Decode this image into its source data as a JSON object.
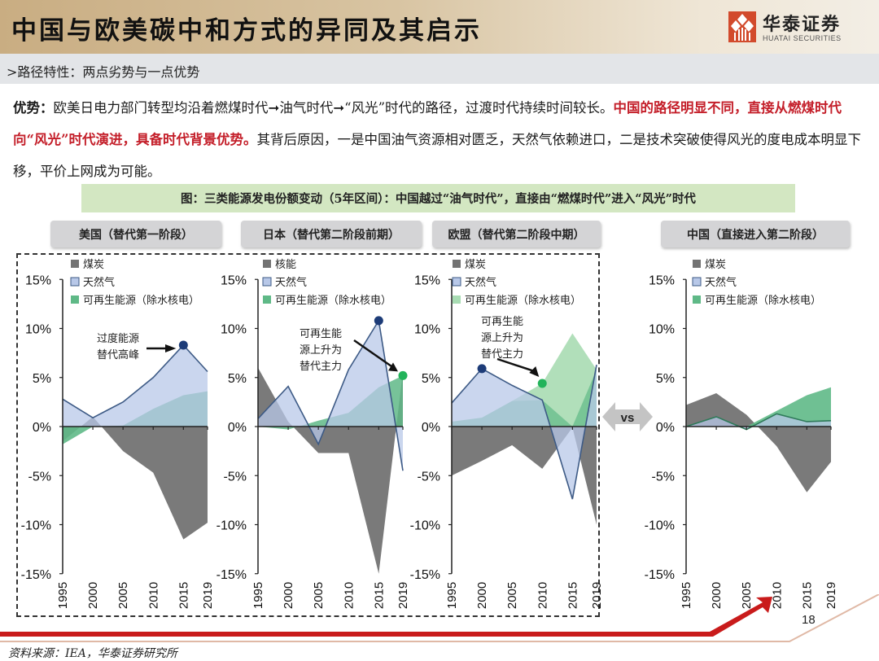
{
  "header": {
    "title": "中国与欧美碳中和方式的异同及其启示",
    "logo_cn": "华泰证券",
    "logo_en": "HUATAI SECURITIES"
  },
  "subheader": {
    "text": ">路径特性：两点劣势与一点优势"
  },
  "paragraph": {
    "lead": "优势：",
    "part1": "欧美日电力部门转型均沿着燃煤时代➞油气时代➞“风光”时代的路径，过渡时代持续时间较长。",
    "highlight": "中国的路径明显不同，直接从燃煤时代向“风光”时代演进，具备时代背景优势。",
    "part2": "其背后原因，一是中国油气资源相对匮乏，天然气依赖进口，二是技术突破使得风光的度电成本明显下移，平价上网成为可能。"
  },
  "figure_title": "图：三类能源发电份额变动（5年区间）：中国越过“油气时代”，直接由“燃煤时代”进入“风光”时代",
  "region_labels": [
    "美国（替代第一阶段）",
    "日本（替代第二阶段前期）",
    "欧盟（替代第二阶段中期）",
    "中国（直接进入第二阶段）"
  ],
  "vs_label": "vs",
  "colors": {
    "coal": "#737373",
    "gas_fill": "#b8c8e8",
    "gas_line": "#3d5a85",
    "renewable_dark": "#5fb987",
    "renewable_light": "#a8dcb3",
    "peak_marker_blue": "#1d3c78",
    "peak_marker_green": "#22b35a",
    "accent_red": "#c91b1b"
  },
  "yticks": [
    "15%",
    "10%",
    "5%",
    "0%",
    "-5%",
    "-10%",
    "-15%"
  ],
  "xticks": [
    "1995",
    "2000",
    "2005",
    "2010",
    "2015",
    "2019"
  ],
  "chart_data": [
    {
      "type": "area",
      "title": "美国（替代第一阶段）",
      "x": [
        1995,
        2000,
        2005,
        2010,
        2015,
        2019
      ],
      "ylim": [
        -15,
        15
      ],
      "ylabel": "发电份额变动（5年区间）",
      "legend": [
        "煤炭",
        "天然气",
        "可再生能源（除水核电）"
      ],
      "series": [
        {
          "name": "煤炭",
          "values": [
            -1.5,
            1.0,
            -2.5,
            -4.7,
            -11.5,
            -9.8
          ]
        },
        {
          "name": "天然气",
          "values": [
            2.8,
            0.9,
            2.5,
            5.0,
            8.3,
            5.6
          ]
        },
        {
          "name": "可再生能源（除水核电）",
          "values": [
            -1.8,
            0.0,
            0.1,
            1.8,
            3.2,
            3.6
          ]
        }
      ],
      "annotation": {
        "text": "过度能源替代高峰",
        "x": 2015,
        "y": 8.3
      }
    },
    {
      "type": "area",
      "title": "日本（替代第二阶段前期）",
      "x": [
        1995,
        2000,
        2005,
        2010,
        2015,
        2019
      ],
      "ylim": [
        -15,
        15
      ],
      "legend": [
        "核能",
        "天然气",
        "可再生能源（除水核电）"
      ],
      "series": [
        {
          "name": "核能",
          "values": [
            6.0,
            0.5,
            -2.7,
            -2.7,
            -15.0,
            5.6
          ]
        },
        {
          "name": "天然气",
          "values": [
            0.8,
            4.1,
            -1.8,
            5.8,
            10.8,
            -4.5
          ]
        },
        {
          "name": "可再生能源（除水核电）",
          "values": [
            0.0,
            -0.3,
            0.6,
            1.4,
            4.0,
            5.2
          ]
        }
      ],
      "annotation": {
        "text": "可再生能源上升为替代主力",
        "x": 2019,
        "y": 5.2
      }
    },
    {
      "type": "area",
      "title": "欧盟（替代第二阶段中期）",
      "x": [
        1995,
        2000,
        2005,
        2010,
        2015,
        2019
      ],
      "ylim": [
        -15,
        15
      ],
      "legend": [
        "煤炭",
        "天然气",
        "可再生能源（除水核电）"
      ],
      "series": [
        {
          "name": "煤炭",
          "values": [
            -5.0,
            -3.5,
            -1.9,
            -4.3,
            -0.1,
            -10.0
          ]
        },
        {
          "name": "天然气",
          "values": [
            2.4,
            5.9,
            4.2,
            2.7,
            -7.4,
            6.3
          ]
        },
        {
          "name": "可再生能源（除水核电）",
          "values": [
            0.5,
            0.9,
            2.6,
            4.4,
            9.5,
            5.8
          ]
        }
      ],
      "annotation": {
        "text": "可再生能源上升为替代主力",
        "x": 2010,
        "y": 4.4
      }
    },
    {
      "type": "area",
      "title": "中国（直接进入第二阶段）",
      "x": [
        1995,
        2000,
        2005,
        2010,
        2015,
        2019
      ],
      "ylim": [
        -15,
        15
      ],
      "legend": [
        "煤炭",
        "天然气",
        "可再生能源（除水核电）"
      ],
      "series": [
        {
          "name": "煤炭",
          "values": [
            2.2,
            3.4,
            1.2,
            -2.0,
            -6.7,
            -3.6
          ]
        },
        {
          "name": "天然气",
          "values": [
            0.0,
            1.0,
            -0.3,
            1.3,
            0.5,
            0.6
          ]
        },
        {
          "name": "可再生能源（除水核电）",
          "values": [
            0.0,
            0.0,
            0.0,
            1.6,
            3.2,
            4.0
          ]
        }
      ]
    }
  ],
  "source": "资料来源：IEA，华泰证券研究所",
  "page_number": "18"
}
